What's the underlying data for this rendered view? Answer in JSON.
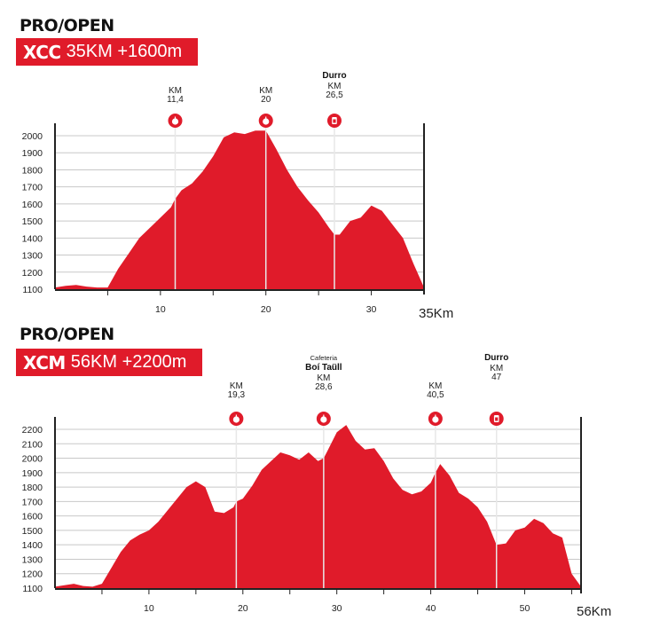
{
  "colors": {
    "fill": "#e01b2a",
    "grid": "#c8c8c8",
    "axis": "#222222",
    "marker_line": "#e8e8e8"
  },
  "charts": [
    {
      "section_title": "PRO/OPEN",
      "badge_code": "XCC",
      "badge_text": "35KM +1600m",
      "end_label": "35Km"
    },
    {
      "section_title": "PRO/OPEN",
      "badge_code": "XCM",
      "badge_text": "56KM +2200m",
      "end_label": "56Km"
    }
  ],
  "chart_data": [
    {
      "type": "area",
      "title": "XCC 35KM +1600m",
      "xlim": [
        0,
        35
      ],
      "ylim": [
        1100,
        2000
      ],
      "yticks": [
        1100,
        1200,
        1300,
        1400,
        1500,
        1600,
        1700,
        1800,
        1900,
        2000
      ],
      "xticks": [
        10,
        20,
        30
      ],
      "x": [
        0,
        1,
        2,
        3,
        4,
        5,
        6,
        7,
        8,
        9,
        10,
        11,
        11.4,
        12,
        13,
        14,
        15,
        16,
        17,
        18,
        19,
        20,
        21,
        22,
        23,
        24,
        25,
        26,
        26.5,
        27,
        28,
        29,
        30,
        31,
        32,
        33,
        34,
        35
      ],
      "y": [
        1110,
        1120,
        1125,
        1115,
        1110,
        1110,
        1220,
        1310,
        1400,
        1460,
        1520,
        1580,
        1630,
        1680,
        1720,
        1790,
        1880,
        1990,
        2020,
        2010,
        2030,
        2030,
        1920,
        1800,
        1700,
        1620,
        1550,
        1460,
        1420,
        1420,
        1500,
        1520,
        1590,
        1560,
        1480,
        1400,
        1250,
        1110
      ],
      "annotations": [
        {
          "km_label": "KM",
          "km": "11,4",
          "x": 11.4,
          "icon": "food-icon"
        },
        {
          "km_label": "KM",
          "km": "20",
          "x": 20,
          "icon": "food-icon"
        },
        {
          "name": "Durro",
          "km_label": "KM",
          "km": "26,5",
          "x": 26.5,
          "icon": "drink-icon"
        }
      ]
    },
    {
      "type": "area",
      "title": "XCM 56KM +2200m",
      "xlim": [
        0,
        56
      ],
      "ylim": [
        1100,
        2200
      ],
      "yticks": [
        1100,
        1200,
        1300,
        1400,
        1500,
        1600,
        1700,
        1800,
        1900,
        2000,
        2100,
        2200
      ],
      "xticks": [
        10,
        20,
        30,
        40,
        50
      ],
      "x": [
        0,
        1,
        2,
        3,
        4,
        5,
        6,
        7,
        8,
        9,
        10,
        11,
        12,
        13,
        14,
        15,
        16,
        17,
        18,
        19,
        19.3,
        20,
        21,
        22,
        23,
        24,
        25,
        26,
        27,
        28,
        28.6,
        29,
        30,
        31,
        32,
        33,
        34,
        35,
        36,
        37,
        38,
        39,
        40,
        40.5,
        41,
        42,
        43,
        44,
        45,
        46,
        47,
        48,
        49,
        50,
        51,
        52,
        53,
        54,
        55,
        56
      ],
      "y": [
        1110,
        1120,
        1130,
        1115,
        1110,
        1130,
        1240,
        1350,
        1430,
        1470,
        1500,
        1560,
        1640,
        1720,
        1800,
        1840,
        1800,
        1630,
        1620,
        1660,
        1700,
        1720,
        1810,
        1920,
        1980,
        2040,
        2020,
        1990,
        2040,
        1980,
        2000,
        2050,
        2180,
        2230,
        2120,
        2060,
        2070,
        1980,
        1860,
        1780,
        1750,
        1770,
        1830,
        1900,
        1960,
        1880,
        1760,
        1720,
        1660,
        1560,
        1400,
        1410,
        1500,
        1520,
        1580,
        1550,
        1480,
        1450,
        1200,
        1110
      ],
      "annotations": [
        {
          "km_label": "KM",
          "km": "19,3",
          "x": 19.3,
          "icon": "food-icon"
        },
        {
          "subname": "Cafeteria",
          "name": "Boí Taüll",
          "km_label": "KM",
          "km": "28,6",
          "x": 28.6,
          "icon": "food-icon"
        },
        {
          "km_label": "KM",
          "km": "40,5",
          "x": 40.5,
          "icon": "food-icon"
        },
        {
          "name": "Durro",
          "km_label": "KM",
          "km": "47",
          "x": 47,
          "icon": "drink-icon"
        }
      ]
    }
  ]
}
